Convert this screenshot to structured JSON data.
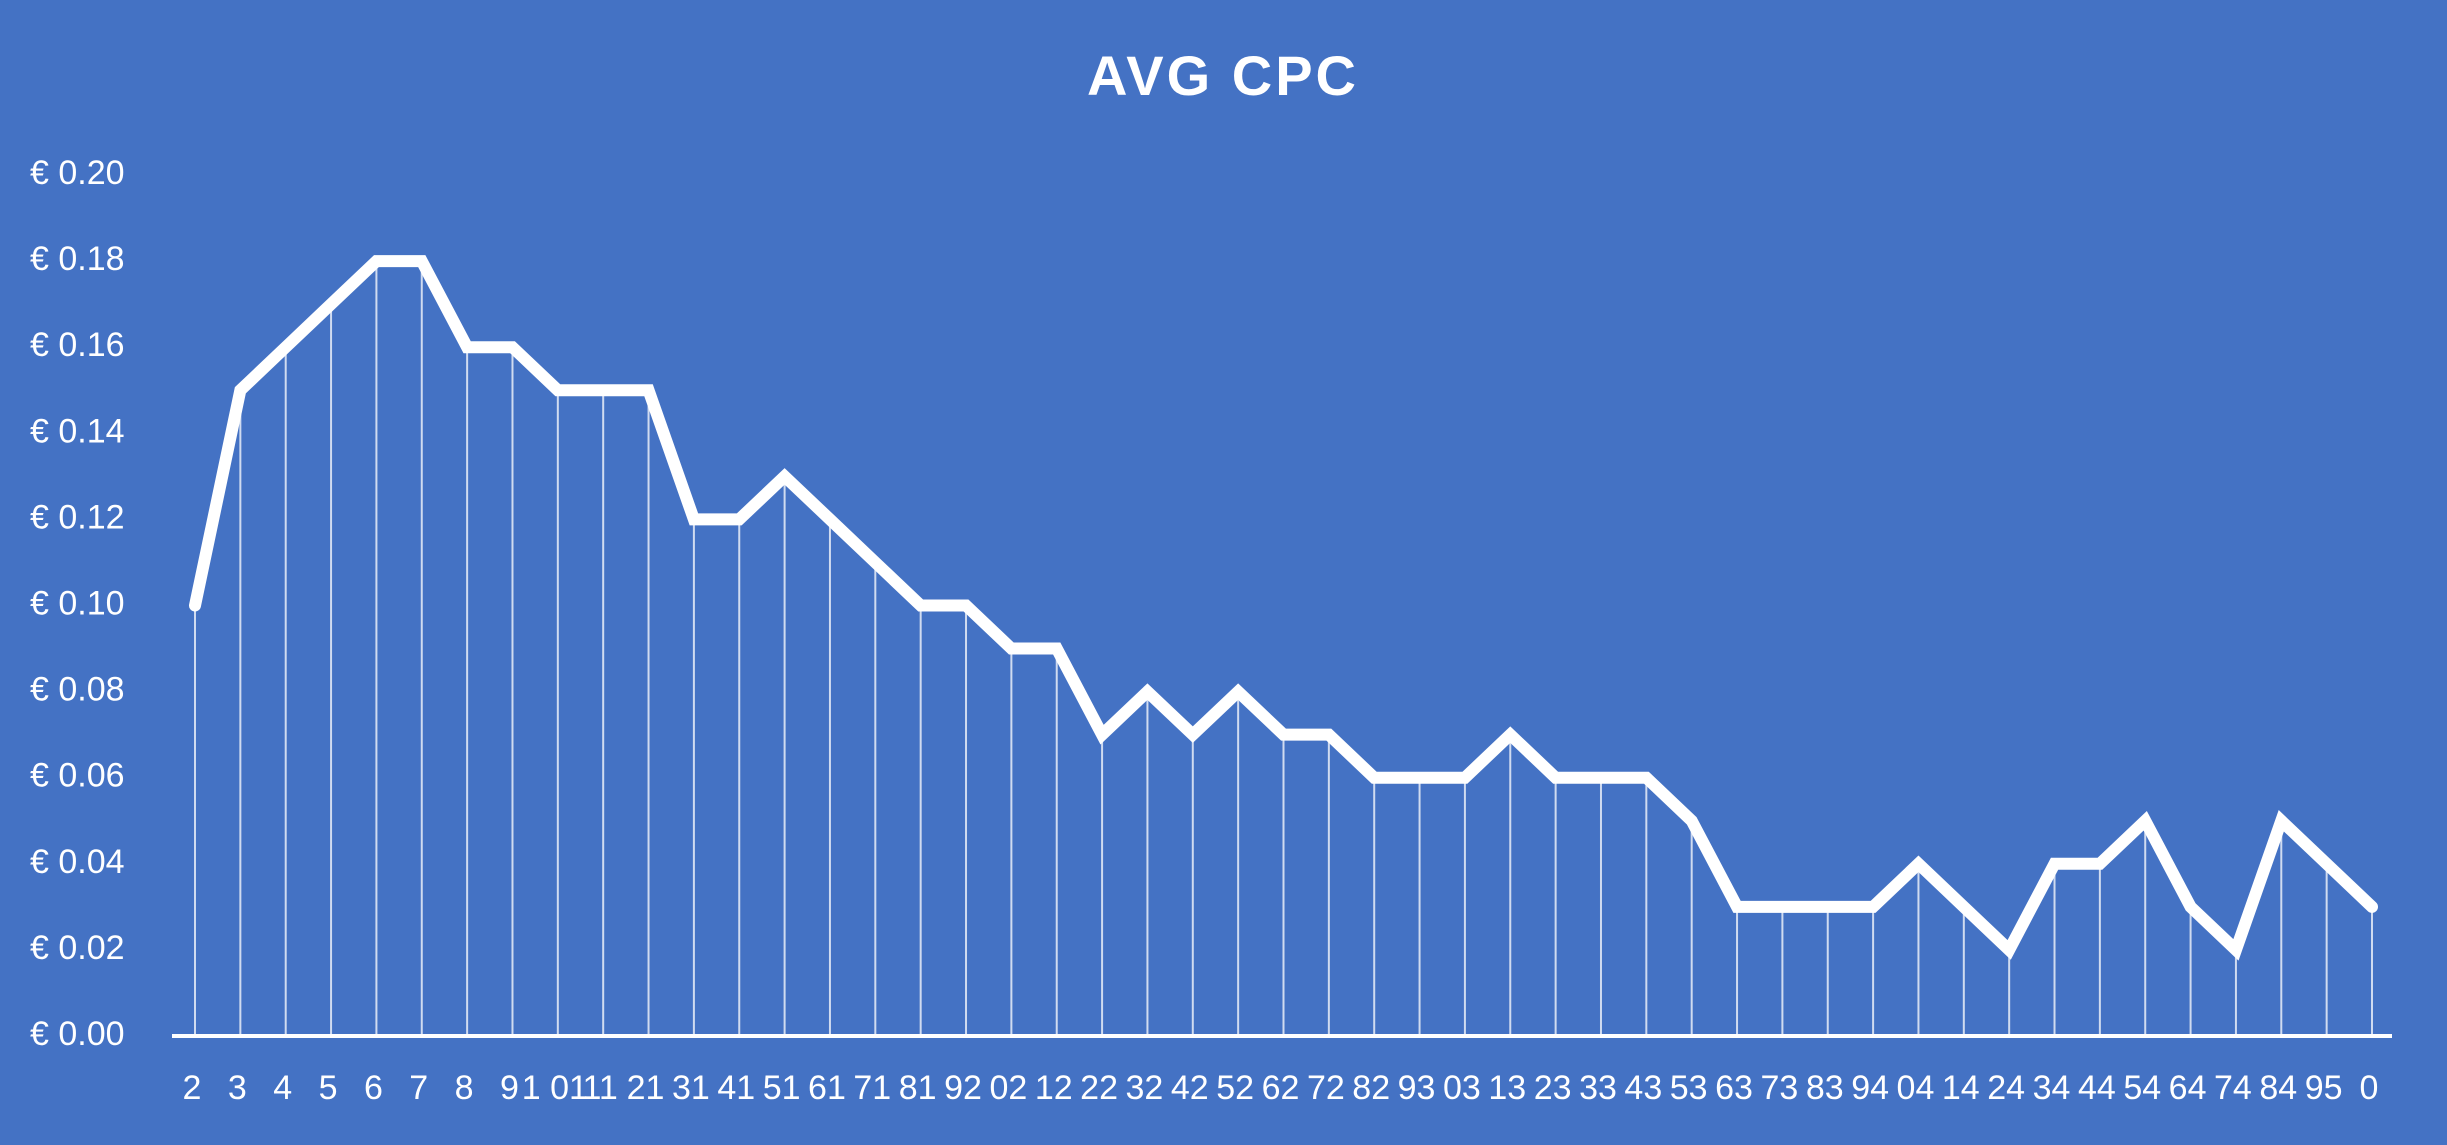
{
  "chart_data": {
    "type": "line",
    "title": "AVG CPC",
    "categories": [
      "2",
      "3",
      "4",
      "5",
      "6",
      "7",
      "8",
      "9",
      "1 01",
      "11",
      "21",
      "31",
      "41",
      "51",
      "61",
      "71",
      "81",
      "92",
      "02",
      "12",
      "22",
      "32",
      "42",
      "52",
      "62",
      "72",
      "82",
      "93",
      "03",
      "13",
      "23",
      "33",
      "43",
      "53",
      "63",
      "73",
      "83",
      "94",
      "04",
      "14",
      "24",
      "34",
      "44",
      "54",
      "64",
      "74",
      "84",
      "95",
      "0"
    ],
    "values": [
      0.1,
      0.15,
      0.16,
      0.17,
      0.18,
      0.18,
      0.16,
      0.16,
      0.15,
      0.15,
      0.15,
      0.12,
      0.12,
      0.13,
      0.12,
      0.11,
      0.1,
      0.1,
      0.09,
      0.09,
      0.07,
      0.08,
      0.07,
      0.08,
      0.07,
      0.07,
      0.06,
      0.06,
      0.06,
      0.07,
      0.06,
      0.06,
      0.06,
      0.05,
      0.03,
      0.03,
      0.03,
      0.03,
      0.04,
      0.03,
      0.02,
      0.04,
      0.04,
      0.05,
      0.03,
      0.02,
      0.05,
      0.04,
      0.03
    ],
    "color": "#ffffff",
    "ylim": [
      0,
      0.2
    ],
    "yticks": [
      {
        "value": 0,
        "label": "€ 0.00"
      },
      {
        "value": 0.02,
        "label": "€ 0.02"
      },
      {
        "value": 0.04,
        "label": "€ 0.04"
      },
      {
        "value": 0.06,
        "label": "€ 0.06"
      },
      {
        "value": 0.08,
        "label": "€ 0.08"
      },
      {
        "value": 0.1,
        "label": "€ 0.10"
      },
      {
        "value": 0.12,
        "label": "€ 0.12"
      },
      {
        "value": 0.14,
        "label": "€ 0.14"
      },
      {
        "value": 0.16,
        "label": "€ 0.16"
      },
      {
        "value": 0.18,
        "label": "€ 0.18"
      },
      {
        "value": 0.2,
        "label": "€ 0.20"
      }
    ],
    "drop_lines": true
  }
}
